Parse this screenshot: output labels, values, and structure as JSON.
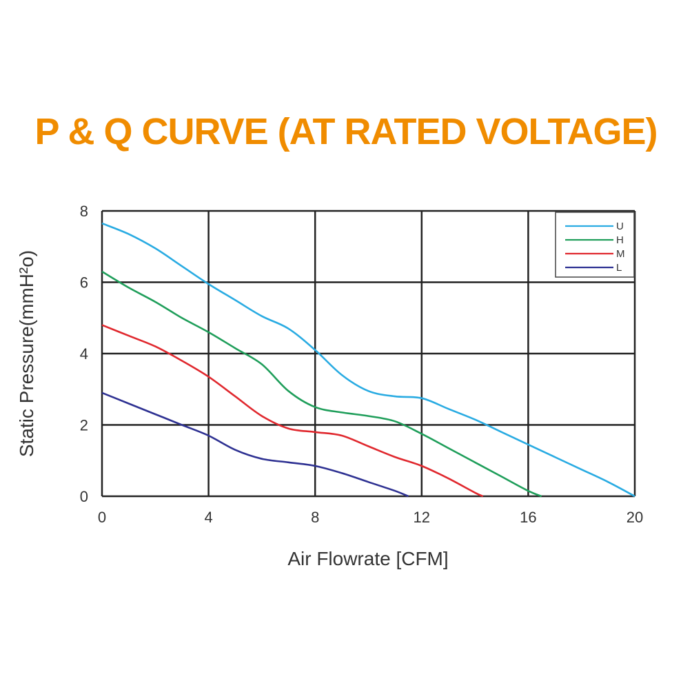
{
  "chart_data": {
    "type": "line",
    "title": "P & Q CURVE (AT RATED VOLTAGE)",
    "title_color": "#f08c00",
    "xlabel": "Air  Flowrate   [CFM]",
    "ylabel": "Static Pressure(mmH²o)",
    "xlim": [
      0,
      20
    ],
    "ylim": [
      0,
      8
    ],
    "x_ticks": [
      0,
      4,
      8,
      12,
      16,
      20
    ],
    "y_ticks": [
      0,
      2,
      4,
      6,
      8
    ],
    "grid": true,
    "legend_position": "top-right",
    "series": [
      {
        "name": "U",
        "color": "#29abe2",
        "points": [
          [
            0,
            7.65
          ],
          [
            1,
            7.35
          ],
          [
            2,
            6.95
          ],
          [
            3,
            6.45
          ],
          [
            4,
            5.95
          ],
          [
            5,
            5.5
          ],
          [
            6,
            5.05
          ],
          [
            7,
            4.7
          ],
          [
            8,
            4.1
          ],
          [
            9,
            3.4
          ],
          [
            10,
            2.95
          ],
          [
            11,
            2.8
          ],
          [
            12,
            2.75
          ],
          [
            13,
            2.45
          ],
          [
            14,
            2.15
          ],
          [
            15,
            1.8
          ],
          [
            16,
            1.45
          ],
          [
            17,
            1.1
          ],
          [
            18,
            0.75
          ],
          [
            19,
            0.4
          ],
          [
            20,
            0.0
          ]
        ]
      },
      {
        "name": "H",
        "color": "#1f9e5a",
        "points": [
          [
            0,
            6.3
          ],
          [
            1,
            5.85
          ],
          [
            2,
            5.45
          ],
          [
            3,
            5.0
          ],
          [
            4,
            4.6
          ],
          [
            5,
            4.15
          ],
          [
            6,
            3.7
          ],
          [
            7,
            2.95
          ],
          [
            8,
            2.5
          ],
          [
            9,
            2.35
          ],
          [
            10,
            2.25
          ],
          [
            11,
            2.1
          ],
          [
            12,
            1.75
          ],
          [
            13,
            1.35
          ],
          [
            14,
            0.95
          ],
          [
            15,
            0.55
          ],
          [
            16,
            0.15
          ],
          [
            16.5,
            0.0
          ]
        ]
      },
      {
        "name": "M",
        "color": "#e0282e",
        "points": [
          [
            0,
            4.8
          ],
          [
            1,
            4.5
          ],
          [
            2,
            4.2
          ],
          [
            3,
            3.8
          ],
          [
            4,
            3.35
          ],
          [
            5,
            2.8
          ],
          [
            6,
            2.25
          ],
          [
            7,
            1.9
          ],
          [
            8,
            1.8
          ],
          [
            9,
            1.7
          ],
          [
            10,
            1.4
          ],
          [
            11,
            1.1
          ],
          [
            12,
            0.85
          ],
          [
            13,
            0.5
          ],
          [
            14,
            0.1
          ],
          [
            14.3,
            0.0
          ]
        ]
      },
      {
        "name": "L",
        "color": "#2e3192",
        "points": [
          [
            0,
            2.9
          ],
          [
            1,
            2.6
          ],
          [
            2,
            2.3
          ],
          [
            3,
            2.0
          ],
          [
            4,
            1.7
          ],
          [
            5,
            1.3
          ],
          [
            6,
            1.05
          ],
          [
            7,
            0.95
          ],
          [
            8,
            0.85
          ],
          [
            9,
            0.65
          ],
          [
            10,
            0.4
          ],
          [
            11,
            0.15
          ],
          [
            11.5,
            0.0
          ]
        ]
      }
    ]
  }
}
